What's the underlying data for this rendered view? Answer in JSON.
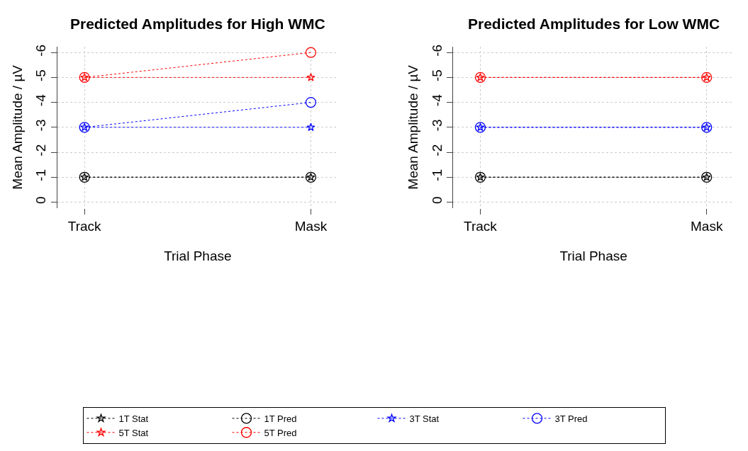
{
  "chart_data": [
    {
      "type": "line",
      "title": "Predicted Amplitudes for High WMC",
      "xlabel": "Trial Phase",
      "ylabel": "Mean Amplitude / µV",
      "categories": [
        "Track",
        "Mask"
      ],
      "ylim": [
        0.24,
        -6.24
      ],
      "yticks": [
        0,
        -1,
        -2,
        -3,
        -4,
        -5,
        -6
      ],
      "grid": true,
      "legend": "bottom",
      "line_style": "dotted",
      "series": [
        {
          "name": "1T Stat",
          "color": "#000000",
          "marker": "star",
          "values": [
            -1,
            -1
          ]
        },
        {
          "name": "1T Pred",
          "color": "#000000",
          "marker": "circle",
          "values": [
            -1,
            -1
          ]
        },
        {
          "name": "3T Stat",
          "color": "#0000ff",
          "marker": "star",
          "values": [
            -3,
            -3
          ]
        },
        {
          "name": "3T Pred",
          "color": "#0000ff",
          "marker": "circle",
          "values": [
            -3,
            -4
          ]
        },
        {
          "name": "5T Stat",
          "color": "#ff0000",
          "marker": "star",
          "values": [
            -5,
            -5
          ]
        },
        {
          "name": "5T Pred",
          "color": "#ff0000",
          "marker": "circle",
          "values": [
            -5,
            -6
          ]
        }
      ]
    },
    {
      "type": "line",
      "title": "Predicted Amplitudes for Low WMC",
      "xlabel": "Trial Phase",
      "ylabel": "Mean Amplitude / µV",
      "categories": [
        "Track",
        "Mask"
      ],
      "ylim": [
        0.24,
        -6.24
      ],
      "yticks": [
        0,
        -1,
        -2,
        -3,
        -4,
        -5,
        -6
      ],
      "grid": true,
      "line_style": "dotted",
      "series": [
        {
          "color": "#000000",
          "marker": "star",
          "values": [
            -1,
            -1
          ]
        },
        {
          "color": "#000000",
          "marker": "circle",
          "values": [
            -1,
            -1
          ]
        },
        {
          "color": "#0000ff",
          "marker": "star",
          "values": [
            -3,
            -3
          ]
        },
        {
          "color": "#0000ff",
          "marker": "circle",
          "values": [
            -3,
            -3
          ]
        },
        {
          "color": "#ff0000",
          "marker": "star",
          "values": [
            -5,
            -5
          ]
        },
        {
          "color": "#ff0000",
          "marker": "circle",
          "values": [
            -5,
            -5
          ]
        }
      ]
    }
  ]
}
